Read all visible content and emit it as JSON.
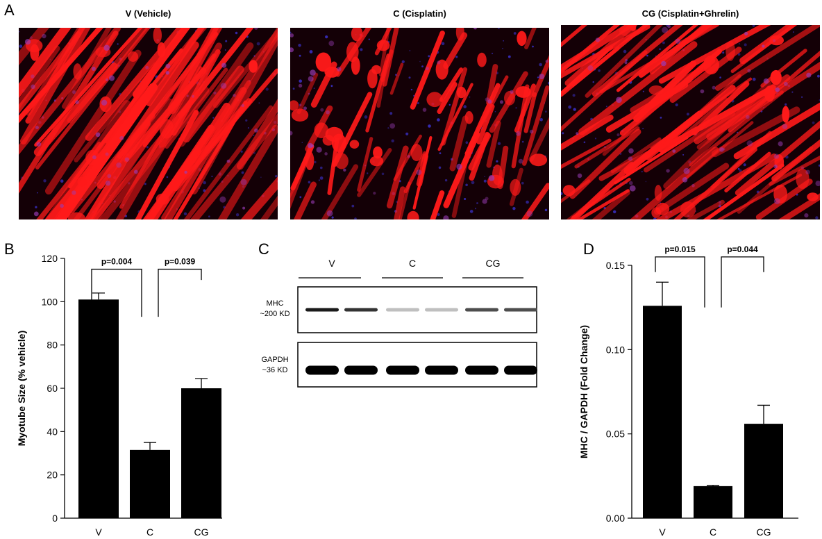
{
  "panels": {
    "a": {
      "letter": "A",
      "images": [
        {
          "title": "V (Vehicle)"
        },
        {
          "title": "C (Cisplatin)"
        },
        {
          "title": "CG (Cisplatin+Ghrelin)"
        }
      ],
      "colors": {
        "background": "#140006",
        "myotube": "#ff1a1a",
        "nuclei": "#3a30c8"
      }
    },
    "b": {
      "letter": "B"
    },
    "c": {
      "letter": "C",
      "groups": [
        "V",
        "C",
        "CG"
      ],
      "rows": [
        {
          "name": "MHC",
          "mw": "~200 KD",
          "band_intensity": [
            0.9,
            0.8,
            0.25,
            0.25,
            0.7,
            0.7
          ]
        },
        {
          "name": "GAPDH",
          "mw": "~36 KD",
          "band_intensity": [
            1.0,
            1.0,
            1.0,
            1.0,
            1.0,
            1.0
          ]
        }
      ]
    },
    "d": {
      "letter": "D"
    }
  },
  "chart_data": [
    {
      "type": "bar",
      "categories": [
        "V",
        "C",
        "CG"
      ],
      "values": [
        101,
        31.5,
        60
      ],
      "errors": [
        3,
        3.5,
        4.5
      ],
      "ylabel": "Myotube Size (% vehicle)",
      "ylim": [
        0,
        120
      ],
      "yticks": [
        0,
        20,
        40,
        60,
        80,
        100,
        120
      ],
      "grid": false,
      "bar_color": "#000000",
      "comparisons": [
        {
          "pair": [
            0,
            1
          ],
          "label": "p=0.004",
          "y": 115,
          "drop": [
            93,
            93
          ]
        },
        {
          "pair": [
            1,
            2
          ],
          "label": "p=0.039",
          "y": 115,
          "drop": [
            93,
            110
          ]
        }
      ]
    },
    {
      "type": "bar",
      "categories": [
        "V",
        "C",
        "CG"
      ],
      "values": [
        0.126,
        0.019,
        0.056
      ],
      "errors": [
        0.014,
        0.0005,
        0.011
      ],
      "ylabel": "MHC / GAPDH (Fold Change)",
      "ylim": [
        0,
        0.15
      ],
      "yticks": [
        0.0,
        0.05,
        0.1,
        0.15
      ],
      "ytick_labels": [
        "0.00",
        "0.05",
        "0.10",
        "0.15"
      ],
      "grid": false,
      "bar_color": "#000000",
      "comparisons": [
        {
          "pair": [
            0,
            1
          ],
          "label": "p=0.015",
          "y": 0.155,
          "drop": [
            0.146,
            0.125
          ]
        },
        {
          "pair": [
            1,
            2
          ],
          "label": "p=0.044",
          "y": 0.155,
          "drop": [
            0.125,
            0.146
          ]
        }
      ]
    }
  ]
}
